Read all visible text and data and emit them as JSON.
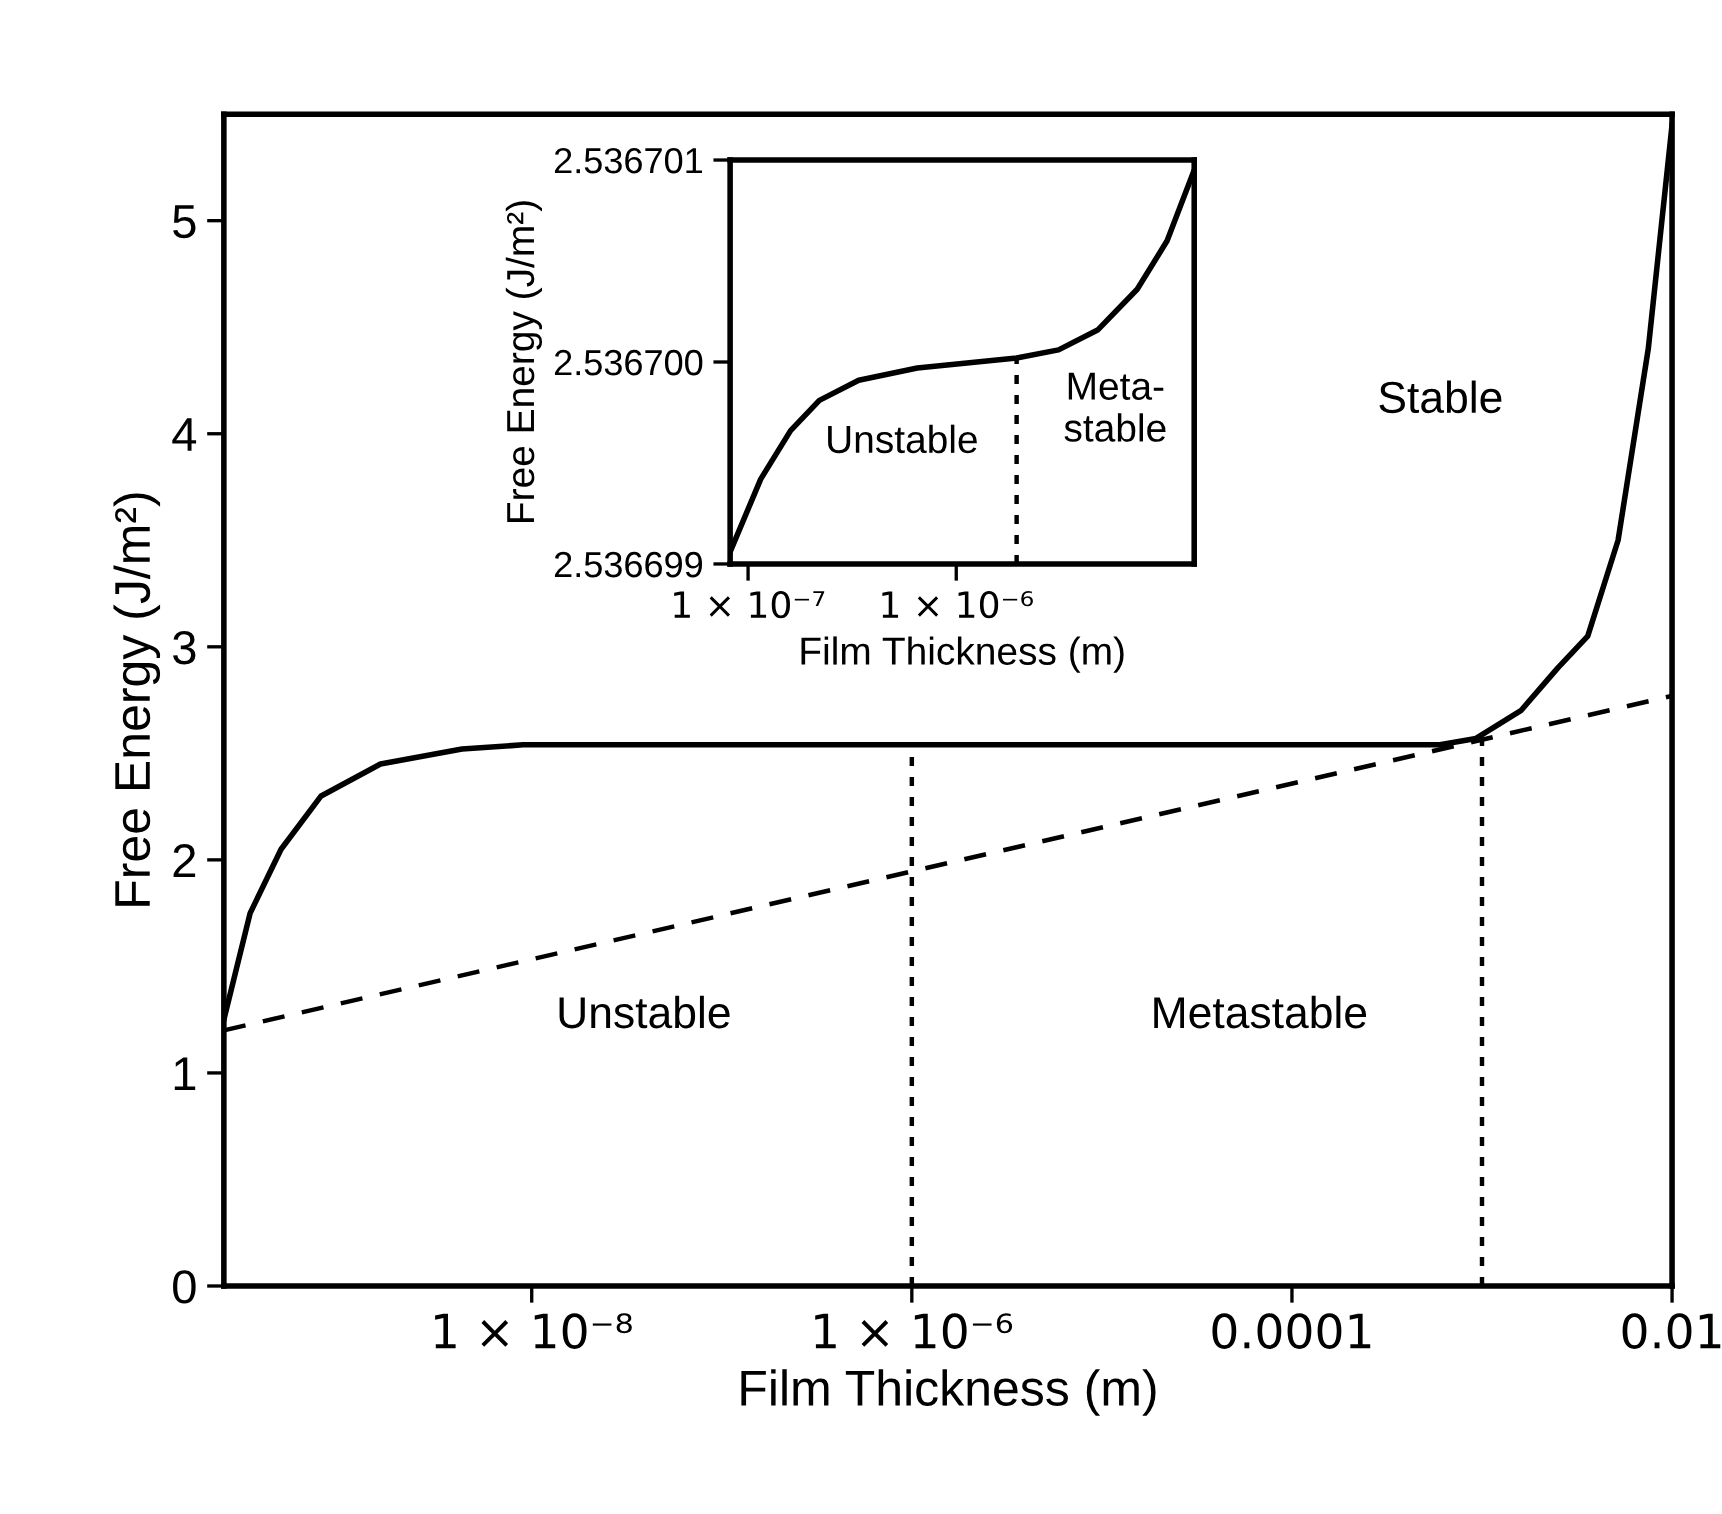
{
  "chart_data": [
    {
      "type": "line",
      "xlabel": "Film Thickness (m)",
      "ylabel": "Free Energy (J/m²)",
      "log": "x",
      "xlim": [
        2.4e-10,
        0.01
      ],
      "ylim": [
        0,
        5.5
      ],
      "xticks": [
        {
          "value": 1e-08,
          "label": "1 × 10⁻⁸"
        },
        {
          "value": 1e-06,
          "label": "1 × 10⁻⁶"
        },
        0.0001,
        0.01
      ],
      "yticks": [
        0,
        1,
        2,
        3,
        4,
        5
      ],
      "grid": false,
      "marker": "none",
      "series": [
        {
          "color": "#000000",
          "line_style": "solid",
          "x": [
            2.4e-10,
            3.3e-10,
            4.8e-10,
            7.8e-10,
            1.6e-09,
            4.3e-09,
            9e-09,
            1e-07,
            1e-06,
            1e-05,
            0.0001,
            0.0006,
            0.00093,
            0.0016,
            0.0025,
            0.0036,
            0.0052,
            0.0075,
            0.01
          ],
          "values": [
            1.25,
            1.75,
            2.05,
            2.3,
            2.45,
            2.52,
            2.54,
            2.54,
            2.54,
            2.54,
            2.54,
            2.54,
            2.57,
            2.7,
            2.9,
            3.05,
            3.5,
            4.4,
            5.45
          ]
        },
        {
          "color": "#000000",
          "line_style": "dashed",
          "x": [
            2.4e-10,
            0.01
          ],
          "values": [
            1.2,
            2.77
          ]
        },
        {
          "color": "#000000",
          "line_style": "dotted",
          "x": [
            1e-06,
            1e-06
          ],
          "values": [
            0,
            2.54
          ]
        },
        {
          "color": "#000000",
          "line_style": "dotted",
          "x": [
            0.001,
            0.001
          ],
          "values": [
            0,
            2.58
          ]
        }
      ],
      "annotations": [
        "Unstable",
        "Metastable",
        "Stable"
      ]
    },
    {
      "type": "line",
      "xlabel": "Film Thickness (m)",
      "ylabel": "Free Energy (J/m²)",
      "log": "x",
      "xlim": [
        8.2e-08,
        1.39e-05
      ],
      "ylim": [
        2.536699,
        2.536701
      ],
      "xticks": [
        {
          "value": 1e-07,
          "label": "1 × 10⁻⁷"
        },
        {
          "value": 1e-06,
          "label": "1 × 10⁻⁶"
        }
      ],
      "yticks": [
        2.536699,
        {
          "value": 2.5367,
          "label": "2.536700"
        },
        2.536701
      ],
      "grid": false,
      "marker": "none",
      "series": [
        {
          "color": "#000000",
          "line_style": "solid",
          "x": [
            8.2e-08,
            1.15e-07,
            1.6e-07,
            2.2e-07,
            3.4e-07,
            6.5e-07,
            1.95e-06,
            3.1e-06,
            4.8e-06,
            7.4e-06,
            1.03e-05,
            1.39e-05
          ],
          "values": [
            2.53669906,
            2.53669942,
            2.53669966,
            2.53669981,
            2.53669991,
            2.53669997,
            2.53670002,
            2.53670006,
            2.53670016,
            2.53670036,
            2.5367006,
            2.53670095
          ]
        },
        {
          "color": "#000000",
          "line_style": "dotted",
          "x": [
            1.95e-06,
            1.95e-06
          ],
          "values": [
            2.536699,
            2.53670002
          ]
        }
      ],
      "annotations": [
        "Unstable",
        "Meta-\nstable"
      ]
    }
  ]
}
